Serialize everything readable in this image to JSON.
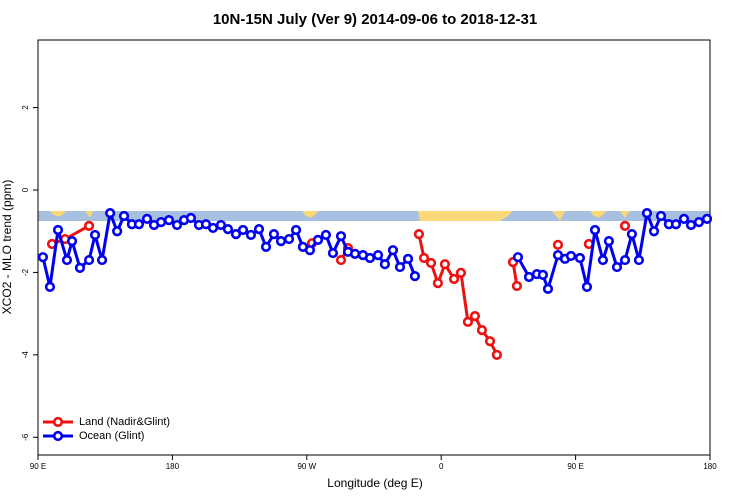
{
  "chart_data": {
    "type": "line",
    "title": "10N-15N July (Ver 9)   2014-09-06 to 2018-12-31",
    "x_label": "Longitude (deg E)",
    "y_label": "XCO2 - MLO trend (ppm)",
    "xlim": [
      90,
      540
    ],
    "ylim": [
      -6.43,
      3.64
    ],
    "xticks": [
      {
        "value": 90,
        "label": "90 E"
      },
      {
        "value": 180,
        "label": "180"
      },
      {
        "value": 270,
        "label": "90 W"
      },
      {
        "value": 360,
        "label": "0"
      },
      {
        "value": 450,
        "label": "90 E"
      },
      {
        "value": 540,
        "label": "180"
      }
    ],
    "yticks": [
      2,
      0,
      -2,
      -4,
      -6
    ],
    "legend": "bottom-left",
    "series": [
      {
        "name": "Land (Nadir&Glint)",
        "color": "#ee1111",
        "x": [
          99.4,
          108.1,
          124.2,
          null,
          273.5,
          null,
          292.9,
          297.6,
          null,
          345.1,
          348.5,
          353.2,
          357.8,
          362.5,
          368.6,
          373.2,
          377.9,
          382.6,
          387.3,
          392.7,
          397.3,
          null,
          408.1,
          410.7,
          null,
          438.2,
          null,
          458.9,
          null,
          483.1
        ],
        "values": [
          -1.31,
          -1.19,
          -0.87,
          null,
          -1.29,
          null,
          -1.7,
          -1.41,
          null,
          -1.07,
          -1.65,
          -1.77,
          -2.26,
          -1.8,
          -2.16,
          -2.01,
          -3.2,
          -3.06,
          -3.4,
          -3.67,
          -4.0,
          null,
          -1.75,
          -2.33,
          null,
          -1.33,
          null,
          -1.31,
          null,
          -0.87
        ]
      },
      {
        "name": "Ocean (Glint)",
        "color": "#0000ee",
        "x": [
          93.3,
          98.0,
          103.4,
          109.4,
          112.8,
          118.1,
          124.2,
          128.2,
          132.9,
          138.3,
          143.0,
          147.6,
          152.9,
          157.6,
          163.0,
          167.7,
          172.4,
          177.7,
          183.1,
          187.8,
          192.4,
          197.8,
          202.5,
          207.2,
          212.5,
          217.2,
          222.6,
          227.3,
          232.6,
          238.0,
          242.7,
          248.0,
          252.7,
          258.1,
          262.8,
          267.4,
          272.1,
          277.5,
          282.8,
          287.5,
          292.9,
          297.6,
          302.3,
          307.6,
          312.3,
          317.7,
          322.3,
          327.7,
          332.4,
          337.8,
          342.4,
          null,
          411.4,
          418.8,
          424.1,
          428.1,
          431.5,
          438.2,
          442.9,
          446.9,
          452.9,
          457.6,
          463.0,
          468.3,
          472.3,
          477.7,
          483.1,
          487.7,
          492.4,
          497.8,
          502.5,
          507.2,
          512.5,
          517.2,
          522.6,
          527.3,
          532.6,
          538.0
        ],
        "values": [
          -1.63,
          -2.35,
          -0.97,
          -1.7,
          -1.24,
          -1.89,
          -1.7,
          -1.09,
          -1.7,
          -0.56,
          -1.0,
          -0.63,
          -0.83,
          -0.83,
          -0.7,
          -0.85,
          -0.78,
          -0.73,
          -0.85,
          -0.73,
          -0.68,
          -0.85,
          -0.83,
          -0.92,
          -0.85,
          -0.95,
          -1.07,
          -0.97,
          -1.09,
          -0.95,
          -1.38,
          -1.07,
          -1.24,
          -1.19,
          -0.97,
          -1.38,
          -1.46,
          -1.21,
          -1.09,
          -1.53,
          -1.12,
          -1.5,
          -1.55,
          -1.58,
          -1.65,
          -1.58,
          -1.8,
          -1.46,
          -1.87,
          -1.67,
          -2.09,
          null,
          -1.63,
          -2.11,
          -2.04,
          -2.06,
          -2.4,
          -1.58,
          -1.67,
          -1.6,
          -1.65,
          -2.35,
          -0.97,
          -1.7,
          -1.24,
          -1.87,
          -1.7,
          -1.07,
          -1.7,
          -0.56,
          -1.0,
          -0.63,
          -0.83,
          -0.83,
          -0.7,
          -0.85,
          -0.78,
          -0.7
        ]
      }
    ]
  }
}
